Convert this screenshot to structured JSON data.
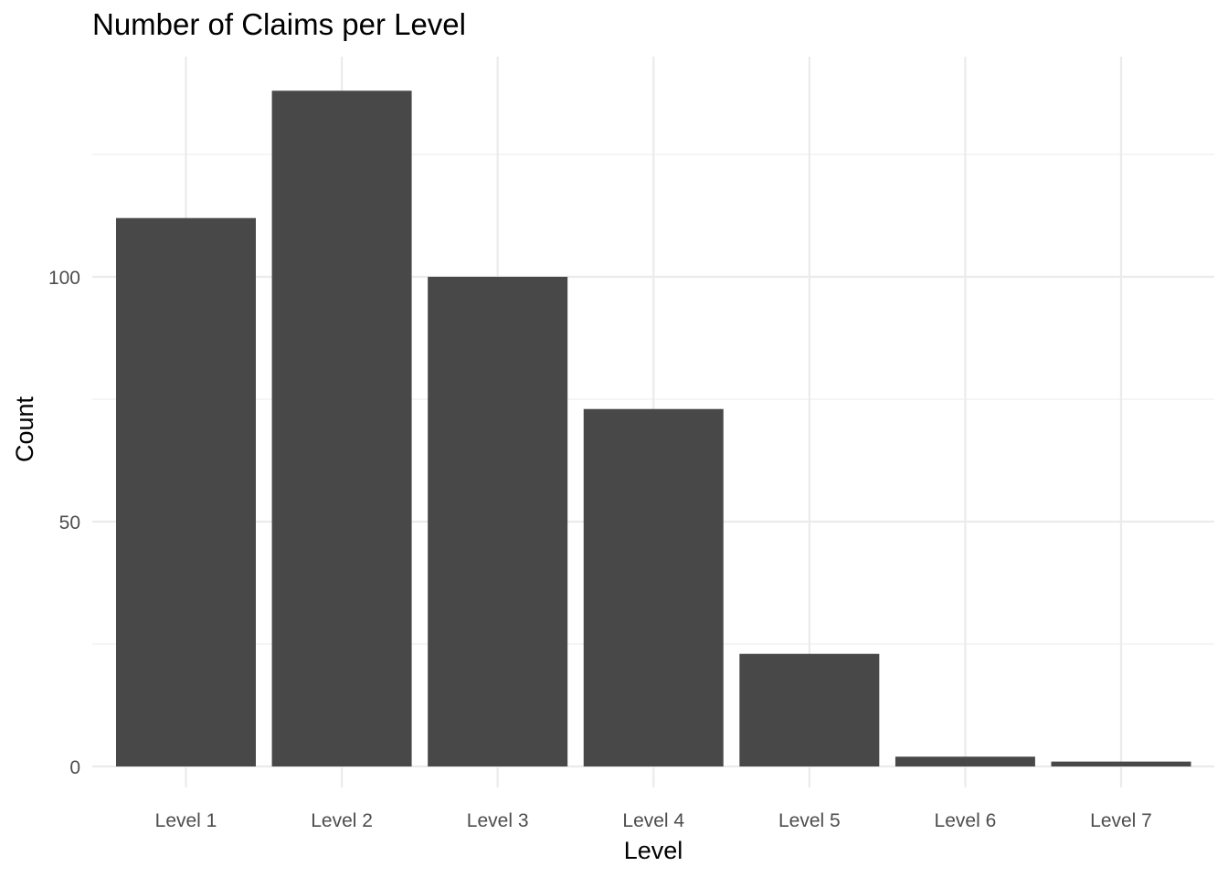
{
  "chart_data": {
    "type": "bar",
    "title": "Number of Claims per Level",
    "xlabel": "Level",
    "ylabel": "Count",
    "categories": [
      "Level 1",
      "Level 2",
      "Level 3",
      "Level 4",
      "Level 5",
      "Level 6",
      "Level 7"
    ],
    "values": [
      112,
      138,
      100,
      73,
      23,
      2,
      1
    ],
    "ylim": [
      0,
      145
    ],
    "yticks": [
      0,
      50,
      100
    ],
    "yticks_labels": [
      "0",
      "50",
      "100"
    ],
    "grid": true,
    "legend": "none",
    "colors": {
      "bar": "#484848",
      "grid": "#ebebeb",
      "tick_label": "#4d4d4d",
      "axis_title": "#000000",
      "background": "#ffffff"
    }
  }
}
